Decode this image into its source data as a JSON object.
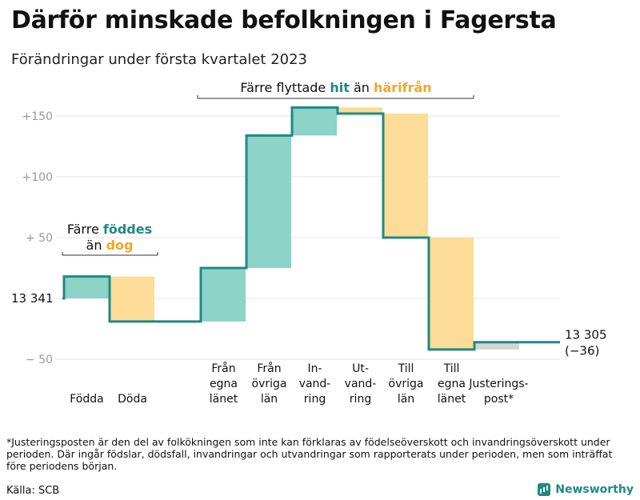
{
  "title": "Därför minskade befolkningen i Fagersta",
  "subtitle": "Förändringar under första kvartalet 2023",
  "footnote": "*Justeringsposten är den del av folkökningen som inte kan förklaras av födelseöverskott och invandringsöverskott under perioden. Där ingår födslar, dödsfall, invandringar och utvandringar som rapporterats under perioden, men som inträffat före periodens början.",
  "source": "Källa: SCB",
  "brand": "Newsworthy",
  "colors": {
    "teal": "#1f8a82",
    "teal_fill": "#8dd3c7",
    "orange_text": "#f5a623",
    "orange_fill": "#fddc97",
    "adjust_fill": "#d4d4d4",
    "grid": "#e6e6e6",
    "tick_text": "#9a9a9a"
  },
  "chart_data": {
    "type": "waterfall",
    "start_label": "13 341",
    "end_label": [
      "13 305",
      "(−36)"
    ],
    "y_tick_labels": [
      "+150",
      "+100",
      "+ 50",
      "− 50"
    ],
    "ylim": [
      -57,
      160
    ],
    "categories": [
      {
        "label": "Födda",
        "start": 0,
        "end": 18,
        "color": "teal"
      },
      {
        "label": "Döda",
        "start": 18,
        "end": -19,
        "color": "orange"
      },
      {
        "label": "Från\negna\nlänet",
        "start": -19,
        "end": 25,
        "color": "teal"
      },
      {
        "label": "Från\növriga\nlän",
        "start": 25,
        "end": 134,
        "color": "teal"
      },
      {
        "label": "In-\nvand-\nring",
        "start": 134,
        "end": 157,
        "color": "teal"
      },
      {
        "label": "Ut-\nvand-\nring",
        "start": 157,
        "end": 152,
        "color": "orange"
      },
      {
        "label": "Till\növriga\nlän",
        "start": 152,
        "end": 50,
        "color": "orange"
      },
      {
        "label": "Till\negna\nlänet",
        "start": 50,
        "end": -42,
        "color": "orange"
      },
      {
        "label": "Justerings-\npost*",
        "start": -42,
        "end": -36,
        "color": "adjust"
      }
    ],
    "annotations": [
      {
        "first": "Färre ",
        "mid": "föddes",
        "second": "än ",
        "end": "dog"
      },
      {
        "first": "Färre flyttade ",
        "mid": "hit",
        "second": " än ",
        "end": "härifrån"
      }
    ]
  }
}
